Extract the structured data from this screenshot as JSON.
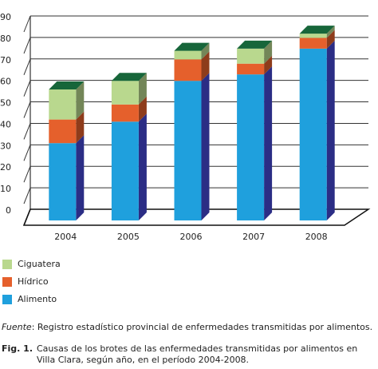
{
  "chart_data": {
    "type": "bar3d_stacked",
    "categories": [
      "2004",
      "2005",
      "2006",
      "2007",
      "2008"
    ],
    "series": [
      {
        "name": "Alimento",
        "color": "#1fa0dd",
        "values": [
          36,
          46,
          65,
          68,
          80
        ]
      },
      {
        "name": "Hídrico",
        "color": "#e5602c",
        "values": [
          11,
          8,
          10,
          5,
          5
        ]
      },
      {
        "name": "Ciguatera",
        "color": "#b9d88e",
        "values": [
          14,
          11,
          4,
          7,
          2
        ]
      }
    ],
    "ylim": [
      0,
      90
    ],
    "yticks": [
      0,
      10,
      20,
      30,
      40,
      50,
      60,
      70,
      80,
      90
    ],
    "grid": true
  },
  "source": {
    "label": "Fuente",
    "text": ": Registro estadístico  provincial de enfermedades transmitidas por alimentos."
  },
  "caption": {
    "label": "Fig. 1.",
    "lines": [
      "Causas de los brotes de las enfermedades transmitidas por alimentos en",
      "Villa Clara, según año, en el período 2004-2008."
    ]
  }
}
